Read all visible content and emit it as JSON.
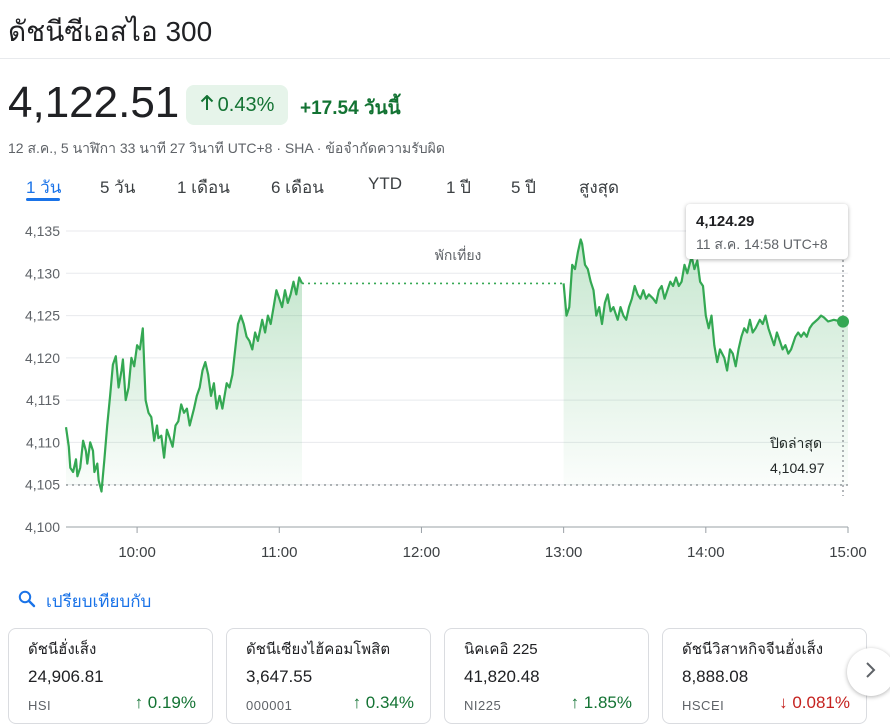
{
  "header": {
    "title": "ดัชนีซีเอสไอ 300"
  },
  "quote": {
    "price": "4,122.51",
    "change_percent": "0.43%",
    "change_value": "+17.54",
    "change_period": "วันนี้",
    "meta": "12 ส.ค., 5 นาฬิกา 33 นาที 27 วินาที UTC+8 · SHA · ข้อจำกัดความรับผิด"
  },
  "tabs": [
    {
      "label": "1 วัน",
      "active": true
    },
    {
      "label": "5 วัน",
      "active": false
    },
    {
      "label": "1 เดือน",
      "active": false
    },
    {
      "label": "6 เดือน",
      "active": false
    },
    {
      "label": "YTD",
      "active": false
    },
    {
      "label": "1 ปี",
      "active": false
    },
    {
      "label": "5 ปี",
      "active": false
    },
    {
      "label": "สูงสุด",
      "active": false
    }
  ],
  "colors": {
    "up": "#137333",
    "down": "#c5221f",
    "line": "#34a853",
    "accent": "#1a73e8"
  },
  "chart_data": {
    "type": "line",
    "lunch_label": "พักเที่ยง",
    "prev_close_label": "ปิดล่าสุด",
    "prev_close": 4104.97,
    "prev_close_text": "4,104.97",
    "ylim": [
      4100,
      4137
    ],
    "y_ticks": [
      4100,
      4105,
      4110,
      4115,
      4120,
      4125,
      4130,
      4135
    ],
    "y_tick_labels": [
      "4,100",
      "4,105",
      "4,110",
      "4,115",
      "4,120",
      "4,125",
      "4,130",
      "4,135"
    ],
    "x_ticks": [
      "10:00",
      "11:00",
      "12:00",
      "13:00",
      "14:00",
      "15:00"
    ],
    "x_tick_hours": [
      10,
      11,
      12,
      13,
      14,
      15
    ],
    "x_range": [
      9.5,
      15.0
    ],
    "morning": [
      [
        9.5,
        4111.8
      ],
      [
        9.52,
        4109.5
      ],
      [
        9.53,
        4107.0
      ],
      [
        9.55,
        4106.5
      ],
      [
        9.57,
        4108.0
      ],
      [
        9.58,
        4106.0
      ],
      [
        9.6,
        4107.0
      ],
      [
        9.62,
        4110.2
      ],
      [
        9.64,
        4109.0
      ],
      [
        9.65,
        4107.5
      ],
      [
        9.67,
        4110.0
      ],
      [
        9.69,
        4109.0
      ],
      [
        9.7,
        4106.5
      ],
      [
        9.72,
        4107.5
      ],
      [
        9.73,
        4105.5
      ],
      [
        9.75,
        4104.2
      ],
      [
        9.77,
        4108.0
      ],
      [
        9.79,
        4112.0
      ],
      [
        9.81,
        4115.5
      ],
      [
        9.83,
        4119.2
      ],
      [
        9.85,
        4120.2
      ],
      [
        9.87,
        4116.5
      ],
      [
        9.89,
        4118.5
      ],
      [
        9.9,
        4119.8
      ],
      [
        9.92,
        4115.0
      ],
      [
        9.94,
        4116.5
      ],
      [
        9.96,
        4120.0
      ],
      [
        9.98,
        4119.0
      ],
      [
        10.0,
        4121.5
      ],
      [
        10.02,
        4121.0
      ],
      [
        10.04,
        4123.5
      ],
      [
        10.06,
        4115.0
      ],
      [
        10.08,
        4113.5
      ],
      [
        10.1,
        4113.0
      ],
      [
        10.12,
        4110.2
      ],
      [
        10.14,
        4112.0
      ],
      [
        10.15,
        4110.5
      ],
      [
        10.17,
        4110.8
      ],
      [
        10.19,
        4108.2
      ],
      [
        10.21,
        4111.5
      ],
      [
        10.23,
        4110.5
      ],
      [
        10.25,
        4109.5
      ],
      [
        10.27,
        4112.0
      ],
      [
        10.29,
        4112.5
      ],
      [
        10.31,
        4114.5
      ],
      [
        10.33,
        4113.5
      ],
      [
        10.35,
        4114.0
      ],
      [
        10.37,
        4112.0
      ],
      [
        10.4,
        4114.0
      ],
      [
        10.42,
        4115.5
      ],
      [
        10.44,
        4116.5
      ],
      [
        10.46,
        4118.5
      ],
      [
        10.48,
        4119.5
      ],
      [
        10.5,
        4118.0
      ],
      [
        10.52,
        4115.5
      ],
      [
        10.54,
        4117.0
      ],
      [
        10.56,
        4114.0
      ],
      [
        10.58,
        4115.5
      ],
      [
        10.6,
        4114.0
      ],
      [
        10.63,
        4117.0
      ],
      [
        10.65,
        4116.5
      ],
      [
        10.67,
        4118.0
      ],
      [
        10.69,
        4121.0
      ],
      [
        10.71,
        4124.0
      ],
      [
        10.73,
        4125.0
      ],
      [
        10.75,
        4124.0
      ],
      [
        10.77,
        4122.5
      ],
      [
        10.79,
        4122.0
      ],
      [
        10.81,
        4121.0
      ],
      [
        10.83,
        4123.0
      ],
      [
        10.85,
        4122.0
      ],
      [
        10.88,
        4124.5
      ],
      [
        10.9,
        4123.0
      ],
      [
        10.92,
        4125.0
      ],
      [
        10.94,
        4124.0
      ],
      [
        10.96,
        4126.0
      ],
      [
        10.98,
        4128.0
      ],
      [
        11.0,
        4127.0
      ],
      [
        11.02,
        4126.0
      ],
      [
        11.04,
        4128.0
      ],
      [
        11.06,
        4126.5
      ],
      [
        11.08,
        4127.5
      ],
      [
        11.1,
        4129.0
      ],
      [
        11.12,
        4127.5
      ],
      [
        11.14,
        4129.5
      ],
      [
        11.16,
        4128.8
      ]
    ],
    "afternoon": [
      [
        13.0,
        4128.8
      ],
      [
        13.02,
        4125.0
      ],
      [
        13.04,
        4126.0
      ],
      [
        13.06,
        4131.0
      ],
      [
        13.08,
        4130.5
      ],
      [
        13.1,
        4132.5
      ],
      [
        13.12,
        4134.0
      ],
      [
        13.13,
        4133.5
      ],
      [
        13.15,
        4131.0
      ],
      [
        13.17,
        4130.5
      ],
      [
        13.19,
        4129.0
      ],
      [
        13.21,
        4128.0
      ],
      [
        13.23,
        4125.0
      ],
      [
        13.25,
        4126.0
      ],
      [
        13.27,
        4124.0
      ],
      [
        13.29,
        4126.5
      ],
      [
        13.31,
        4127.5
      ],
      [
        13.33,
        4125.5
      ],
      [
        13.35,
        4126.0
      ],
      [
        13.38,
        4124.5
      ],
      [
        13.4,
        4126.0
      ],
      [
        13.42,
        4125.0
      ],
      [
        13.44,
        4124.5
      ],
      [
        13.46,
        4126.0
      ],
      [
        13.48,
        4127.0
      ],
      [
        13.5,
        4128.5
      ],
      [
        13.52,
        4127.5
      ],
      [
        13.54,
        4127.0
      ],
      [
        13.56,
        4128.0
      ],
      [
        13.58,
        4127.0
      ],
      [
        13.6,
        4127.5
      ],
      [
        13.63,
        4127.0
      ],
      [
        13.65,
        4126.5
      ],
      [
        13.67,
        4128.0
      ],
      [
        13.69,
        4128.5
      ],
      [
        13.71,
        4127.0
      ],
      [
        13.73,
        4128.0
      ],
      [
        13.75,
        4129.0
      ],
      [
        13.77,
        4128.5
      ],
      [
        13.79,
        4129.5
      ],
      [
        13.81,
        4128.5
      ],
      [
        13.83,
        4129.0
      ],
      [
        13.85,
        4131.0
      ],
      [
        13.87,
        4130.0
      ],
      [
        13.9,
        4132.0
      ],
      [
        13.92,
        4130.5
      ],
      [
        13.94,
        4131.5
      ],
      [
        13.96,
        4129.0
      ],
      [
        13.98,
        4128.5
      ],
      [
        14.0,
        4125.0
      ],
      [
        14.02,
        4123.5
      ],
      [
        14.04,
        4125.0
      ],
      [
        14.06,
        4121.5
      ],
      [
        14.08,
        4119.5
      ],
      [
        14.1,
        4121.0
      ],
      [
        14.13,
        4120.0
      ],
      [
        14.15,
        4118.5
      ],
      [
        14.17,
        4121.0
      ],
      [
        14.19,
        4120.5
      ],
      [
        14.21,
        4119.0
      ],
      [
        14.23,
        4121.0
      ],
      [
        14.25,
        4122.5
      ],
      [
        14.27,
        4123.5
      ],
      [
        14.29,
        4123.0
      ],
      [
        14.31,
        4124.5
      ],
      [
        14.33,
        4123.0
      ],
      [
        14.35,
        4123.5
      ],
      [
        14.38,
        4124.5
      ],
      [
        14.4,
        4124.0
      ],
      [
        14.42,
        4125.0
      ],
      [
        14.44,
        4123.5
      ],
      [
        14.46,
        4122.5
      ],
      [
        14.48,
        4121.5
      ],
      [
        14.5,
        4123.0
      ],
      [
        14.52,
        4122.0
      ],
      [
        14.54,
        4121.0
      ],
      [
        14.56,
        4121.5
      ],
      [
        14.58,
        4120.5
      ],
      [
        14.6,
        4121.0
      ],
      [
        14.63,
        4122.5
      ],
      [
        14.65,
        4123.0
      ],
      [
        14.67,
        4122.5
      ],
      [
        14.69,
        4123.0
      ],
      [
        14.71,
        4122.5
      ],
      [
        14.73,
        4123.5
      ],
      [
        14.75,
        4124.0
      ],
      [
        14.77,
        4124.3
      ],
      [
        14.79,
        4124.6
      ],
      [
        14.81,
        4125.0
      ],
      [
        14.83,
        4124.8
      ],
      [
        14.86,
        4124.3
      ],
      [
        14.9,
        4124.5
      ],
      [
        14.95,
        4124.3
      ],
      [
        15.0,
        4124.29
      ]
    ],
    "tooltip": {
      "value": "4,124.29",
      "time": "11 ส.ค. 14:58 UTC+8"
    }
  },
  "compare": {
    "label": "เปรียบเทียบกับ"
  },
  "cards": [
    {
      "name": "ดัชนีฮั่งเส็ง",
      "value": "24,906.81",
      "symbol": "HSI",
      "change": "0.19%",
      "direction": "up"
    },
    {
      "name": "ดัชนีเซียงไฮ้คอมโพสิต",
      "value": "3,647.55",
      "symbol": "000001",
      "change": "0.34%",
      "direction": "up"
    },
    {
      "name": "นิคเคอิ 225",
      "value": "41,820.48",
      "symbol": "NI225",
      "change": "1.85%",
      "direction": "up"
    },
    {
      "name": "ดัชนีวิสาหกิจจีนฮั่งเส็ง",
      "value": "8,888.08",
      "symbol": "HSCEI",
      "change": "0.081%",
      "direction": "down"
    }
  ]
}
